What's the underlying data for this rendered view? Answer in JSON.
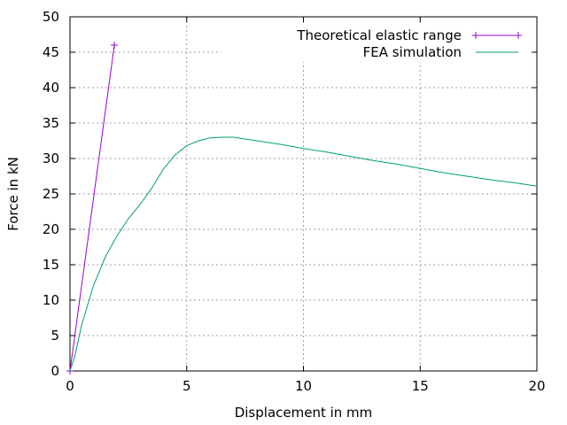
{
  "chart_data": {
    "type": "line",
    "title": "",
    "xlabel": "Displacement in mm",
    "ylabel": "Force in kN",
    "xlim": [
      0,
      20
    ],
    "ylim": [
      0,
      50
    ],
    "xticks": [
      0,
      5,
      10,
      15,
      20
    ],
    "yticks": [
      0,
      5,
      10,
      15,
      20,
      25,
      30,
      35,
      40,
      45,
      50
    ],
    "grid": true,
    "legend_position": "top-right",
    "series": [
      {
        "name": "Theoretical elastic range",
        "color": "#9400d3",
        "marker": "plus",
        "x": [
          0,
          1.9
        ],
        "y": [
          0,
          46
        ]
      },
      {
        "name": "FEA simulation",
        "color": "#009e73",
        "marker": "none",
        "x": [
          0,
          0.2,
          0.5,
          1.0,
          1.5,
          2.0,
          2.5,
          3.0,
          3.5,
          4.0,
          4.5,
          5.0,
          5.5,
          6.0,
          6.5,
          7.0,
          8.0,
          9.0,
          10.0,
          11.0,
          12.0,
          13.0,
          14.0,
          15.0,
          16.0,
          17.0,
          18.0,
          19.0,
          20.0
        ],
        "y": [
          0,
          2,
          6.5,
          12,
          16,
          19,
          21.5,
          23.5,
          25.8,
          28.5,
          30.5,
          31.8,
          32.5,
          32.9,
          33.0,
          33.0,
          32.5,
          32.0,
          31.4,
          30.9,
          30.3,
          29.7,
          29.2,
          28.6,
          28.0,
          27.5,
          27.0,
          26.6,
          26.1
        ]
      }
    ]
  }
}
